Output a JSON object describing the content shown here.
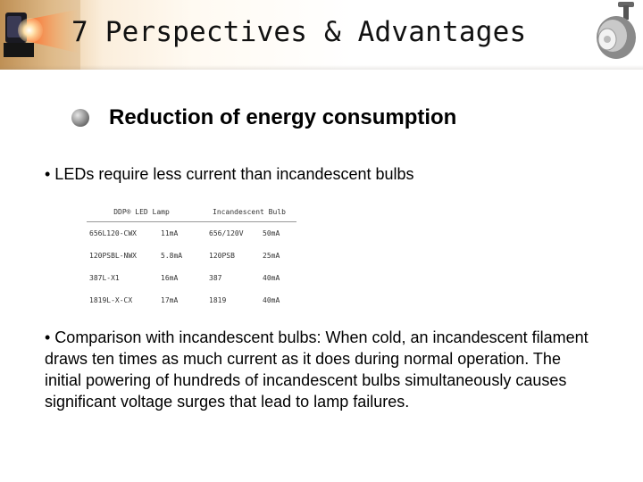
{
  "slide": {
    "title": "7 Perspectives & Advantages",
    "heading": "Reduction of energy consumption",
    "bullet1": "• LEDs require less current than incandescent bulbs",
    "bullet2": "• Comparison with incandescent bulbs: When cold, an incandescent filament draws ten times as much current as it does during normal operation. The initial powering of hundreds of incandescent bulbs simultaneously causes significant voltage surges that lead to lamp failures."
  },
  "table": {
    "headers": {
      "led_lamp": "DDP® LED Lamp",
      "incandescent": "Incandescent Bulb"
    },
    "rows": [
      {
        "led_part": "656L120-CWX",
        "led_current": "11mA",
        "bulb_part": "656/120V",
        "bulb_current": "50mA"
      },
      {
        "led_part": "120PSBL-NWX",
        "led_current": "5.8mA",
        "bulb_part": "120PSB",
        "bulb_current": "25mA"
      },
      {
        "led_part": "387L-X1",
        "led_current": "16mA",
        "bulb_part": "387",
        "bulb_current": "40mA"
      },
      {
        "led_part": "1819L-X-CX",
        "led_current": "17mA",
        "bulb_part": "1819",
        "bulb_current": "40mA"
      }
    ]
  },
  "icons": {
    "heading_bullet": "sphere-bullet-icon"
  }
}
